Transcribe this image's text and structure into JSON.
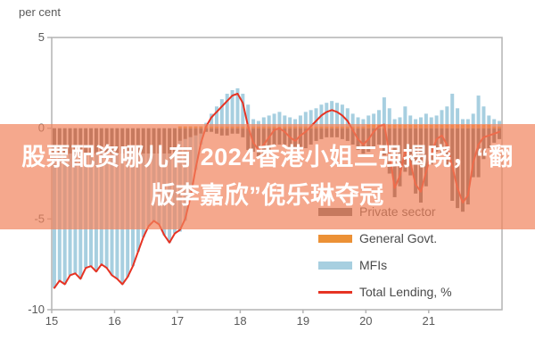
{
  "page": {
    "y_axis_unit_label": "per cent"
  },
  "watermark": {
    "line1": "股票配资哪儿有 2024香港小姐三强揭晓，“翻",
    "line2": "版李嘉欣”倪乐琳夺冠",
    "band_color": "rgba(241,131,92,0.70)",
    "text_color": "#ffffff"
  },
  "legend": {
    "items": [
      {
        "label": "Private sector",
        "color": "#636363",
        "swatch": "bar"
      },
      {
        "label": "General Govt.",
        "color": "#ec9136",
        "swatch": "bar"
      },
      {
        "label": "MFIs",
        "color": "#a7cfe0",
        "swatch": "bar"
      },
      {
        "label": "Total Lending, %",
        "color": "#e63323",
        "swatch": "line"
      }
    ]
  },
  "chart_data": {
    "type": "bar",
    "subtype": "stacked-monthly-bars-with-line-overlay",
    "title": "",
    "xlabel": "",
    "ylabel": "per cent",
    "x_start_month": "2015-01",
    "x_months": 86,
    "x_tick_labels": [
      "15",
      "16",
      "17",
      "18",
      "19",
      "20",
      "21"
    ],
    "ylim": [
      -10,
      5
    ],
    "y_ticks": [
      5,
      0,
      -5,
      -10
    ],
    "grid": false,
    "legend_position": "right-middle",
    "frame_color": "#b4b4b4",
    "series": [
      {
        "name": "Private sector",
        "color": "#636363",
        "values": [
          -1.4,
          -1.4,
          -1.4,
          -1.4,
          -1.4,
          -1.4,
          -1.4,
          -1.4,
          -1.4,
          -1.4,
          -1.4,
          -1.4,
          -1.4,
          -1.4,
          -1.4,
          -1.4,
          -1.4,
          -1.4,
          -1.4,
          -1.4,
          -1.4,
          -1.4,
          -1.4,
          -1.4,
          -0.7,
          -0.6,
          -0.5,
          -0.4,
          -0.3,
          -0.2,
          -0.2,
          -0.3,
          -0.4,
          -0.4,
          -0.3,
          -0.3,
          -0.5,
          -1.2,
          -1.3,
          -1.6,
          -1.5,
          -1.2,
          -0.9,
          -0.9,
          -0.9,
          -1.1,
          -1.2,
          -1.1,
          -1.1,
          -0.9,
          -0.7,
          -0.6,
          -0.5,
          -0.5,
          -0.5,
          -0.6,
          -0.7,
          -0.9,
          -1.2,
          -1.4,
          -1.3,
          -1.0,
          -0.9,
          -1.5,
          -2.5,
          -3.8,
          -3.2,
          -2.4,
          -2.6,
          -3.6,
          -4.1,
          -3.2,
          -2.0,
          -1.3,
          -1.4,
          -2.1,
          -4.0,
          -4.4,
          -4.6,
          -4.2,
          -2.7,
          -2.7,
          -1.7,
          -1.1,
          -0.8,
          -0.6
        ]
      },
      {
        "name": "General Govt.",
        "color": "#ec9136",
        "values": [
          0.0,
          0.0,
          0.0,
          0.0,
          0.0,
          0.0,
          0.0,
          0.0,
          0.0,
          0.0,
          0.0,
          0.0,
          0.0,
          0.0,
          0.0,
          0.0,
          0.0,
          0.0,
          0.0,
          0.0,
          0.0,
          0.0,
          0.0,
          0.0,
          0.1,
          0.1,
          0.1,
          0.1,
          0.1,
          0.1,
          0.1,
          0.1,
          0.1,
          0.1,
          0.1,
          0.1,
          0.1,
          0.1,
          0.1,
          0.1,
          0.1,
          0.1,
          0.1,
          0.1,
          0.1,
          0.1,
          0.1,
          0.1,
          0.1,
          0.1,
          0.1,
          0.1,
          0.1,
          0.1,
          0.1,
          0.1,
          0.1,
          0.1,
          0.1,
          0.1,
          0.2,
          0.2,
          0.2,
          0.2,
          0.2,
          0.2,
          0.2,
          0.2,
          0.2,
          0.2,
          0.2,
          0.2,
          0.2,
          0.2,
          0.2,
          0.2,
          0.2,
          0.2,
          0.2,
          0.2,
          0.2,
          0.2,
          0.2,
          0.2,
          0.1,
          0.1
        ]
      },
      {
        "name": "MFIs",
        "color": "#a7cfe0",
        "values": [
          -7.4,
          -7.0,
          -7.2,
          -6.7,
          -6.6,
          -6.9,
          -6.3,
          -6.2,
          -6.5,
          -6.1,
          -6.3,
          -6.7,
          -6.9,
          -7.2,
          -6.8,
          -6.2,
          -5.4,
          -4.6,
          -4.0,
          -3.7,
          -3.9,
          -4.5,
          -4.9,
          -4.4,
          -5.0,
          -4.5,
          -3.4,
          -1.9,
          -0.6,
          0.2,
          0.7,
          1.1,
          1.5,
          1.8,
          2.0,
          2.1,
          1.8,
          1.2,
          0.4,
          0.3,
          0.5,
          0.6,
          0.7,
          0.8,
          0.6,
          0.5,
          0.4,
          0.6,
          0.8,
          0.9,
          1.0,
          1.2,
          1.3,
          1.4,
          1.3,
          1.2,
          1.0,
          0.7,
          0.5,
          0.4,
          0.5,
          0.6,
          0.8,
          1.5,
          0.9,
          0.3,
          0.4,
          1.0,
          0.5,
          0.3,
          0.4,
          0.6,
          0.4,
          0.5,
          0.8,
          1.0,
          1.7,
          0.9,
          0.3,
          0.3,
          0.6,
          1.6,
          1.0,
          0.5,
          0.4,
          0.3
        ]
      }
    ],
    "total_line": {
      "name": "Total Lending, %",
      "color": "#e63323",
      "values": [
        -8.8,
        -8.4,
        -8.6,
        -8.1,
        -8.0,
        -8.3,
        -7.7,
        -7.6,
        -7.9,
        -7.5,
        -7.7,
        -8.1,
        -8.3,
        -8.6,
        -8.2,
        -7.6,
        -6.8,
        -6.0,
        -5.4,
        -5.1,
        -5.3,
        -5.9,
        -6.3,
        -5.8,
        -5.6,
        -5.0,
        -3.8,
        -2.2,
        -0.8,
        0.1,
        0.6,
        0.9,
        1.2,
        1.5,
        1.8,
        1.9,
        1.4,
        0.1,
        -0.8,
        -1.2,
        -0.9,
        -0.5,
        -0.1,
        0.0,
        -0.2,
        -0.5,
        -0.7,
        -0.4,
        -0.2,
        0.1,
        0.4,
        0.7,
        0.9,
        1.0,
        0.9,
        0.7,
        0.4,
        -0.1,
        -0.6,
        -0.9,
        -0.6,
        -0.2,
        0.1,
        0.2,
        -1.4,
        -3.3,
        -2.6,
        -1.2,
        -1.9,
        -3.1,
        -3.5,
        -2.4,
        -1.4,
        -0.6,
        -0.4,
        -0.9,
        -2.1,
        -3.3,
        -4.1,
        -3.7,
        -1.9,
        -0.9,
        -0.5,
        -0.4,
        -0.3,
        -0.2
      ]
    }
  }
}
